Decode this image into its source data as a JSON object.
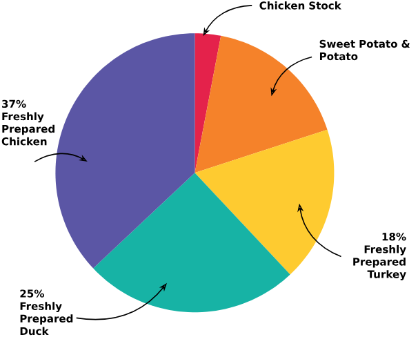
{
  "chart_data": {
    "type": "pie",
    "categories": [
      "Chicken Stock",
      "Sweet Potato & Potato",
      "Freshly Prepared Turkey",
      "Freshly Prepared Duck",
      "Freshly Prepared Chicken"
    ],
    "values": [
      3,
      17,
      18,
      25,
      37
    ],
    "value_labels": [
      null,
      null,
      "18%",
      "25%",
      "37%"
    ],
    "colors": [
      "#e4224b",
      "#f5822a",
      "#fecb30",
      "#17b3a5",
      "#5b56a5"
    ]
  }
}
